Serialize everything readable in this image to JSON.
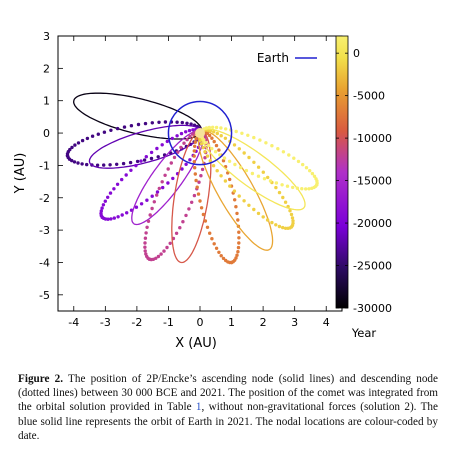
{
  "chart_data": {
    "type": "scatter",
    "title": "",
    "xlabel": "X (AU)",
    "ylabel": "Y (AU)",
    "xlim": [
      -4.5,
      4.5
    ],
    "ylim": [
      -5.5,
      3
    ],
    "xticks": [
      "-4",
      "-3",
      "-2",
      "-1",
      "0",
      "1",
      "2",
      "3",
      "4"
    ],
    "yticks": [
      "3",
      "2",
      "1",
      "0",
      "-1",
      "-2",
      "-3",
      "-4",
      "-5"
    ],
    "grid": false,
    "legend": {
      "position": "top-right",
      "entries": [
        {
          "label": "Earth",
          "color": "#2020d0"
        }
      ]
    },
    "colorbar": {
      "label": "Year",
      "range": [
        -30000,
        2021
      ],
      "ticks": [
        "0",
        "-5000",
        "-10000",
        "-15000",
        "-20000",
        "-25000",
        "-30000"
      ],
      "colors": [
        "#000000",
        "#2a0a5e",
        "#7a00d8",
        "#b030c8",
        "#d95a40",
        "#e8a030",
        "#f2e04a",
        "#f8f070"
      ]
    },
    "earth_orbit": {
      "center": [
        0,
        0
      ],
      "radius_au": 1.0
    },
    "sun": {
      "x": 0,
      "y": 0
    },
    "series": [
      {
        "year": -29000,
        "style": "solid",
        "tip": [
          -4.0,
          1.0
        ]
      },
      {
        "year": -24000,
        "style": "dotted",
        "tip": [
          -4.2,
          -0.7
        ]
      },
      {
        "year": -22000,
        "style": "solid",
        "tip": [
          -3.5,
          -0.9
        ]
      },
      {
        "year": -19000,
        "style": "dotted",
        "tip": [
          -3.1,
          -2.6
        ]
      },
      {
        "year": -16000,
        "style": "solid",
        "tip": [
          -2.1,
          -2.8
        ]
      },
      {
        "year": -12000,
        "style": "dotted",
        "tip": [
          -1.6,
          -3.9
        ]
      },
      {
        "year": -9500,
        "style": "solid",
        "tip": [
          -0.6,
          -4.0
        ]
      },
      {
        "year": -7000,
        "style": "dotted",
        "tip": [
          1.0,
          -4.0
        ]
      },
      {
        "year": -4000,
        "style": "solid",
        "tip": [
          2.2,
          -3.6
        ]
      },
      {
        "year": -1500,
        "style": "dotted",
        "tip": [
          2.9,
          -2.9
        ]
      },
      {
        "year": 500,
        "style": "solid",
        "tip": [
          3.3,
          -2.3
        ]
      },
      {
        "year": 2021,
        "style": "dotted",
        "tip": [
          3.7,
          -1.6
        ]
      }
    ]
  },
  "caption": {
    "label": "Figure 2.",
    "part1": "The position of 2P/Encke’s ascending node (solid lines) and descending node (dotted lines) between 30 000 BCE and 2021. The position of the comet was integrated from the orbital solution provided in Table",
    "ref": "1",
    "part2": ", without non-gravitational forces (solution 2). The blue solid line represents the orbit of Earth in 2021. The nodal locations are colour-coded by date."
  }
}
